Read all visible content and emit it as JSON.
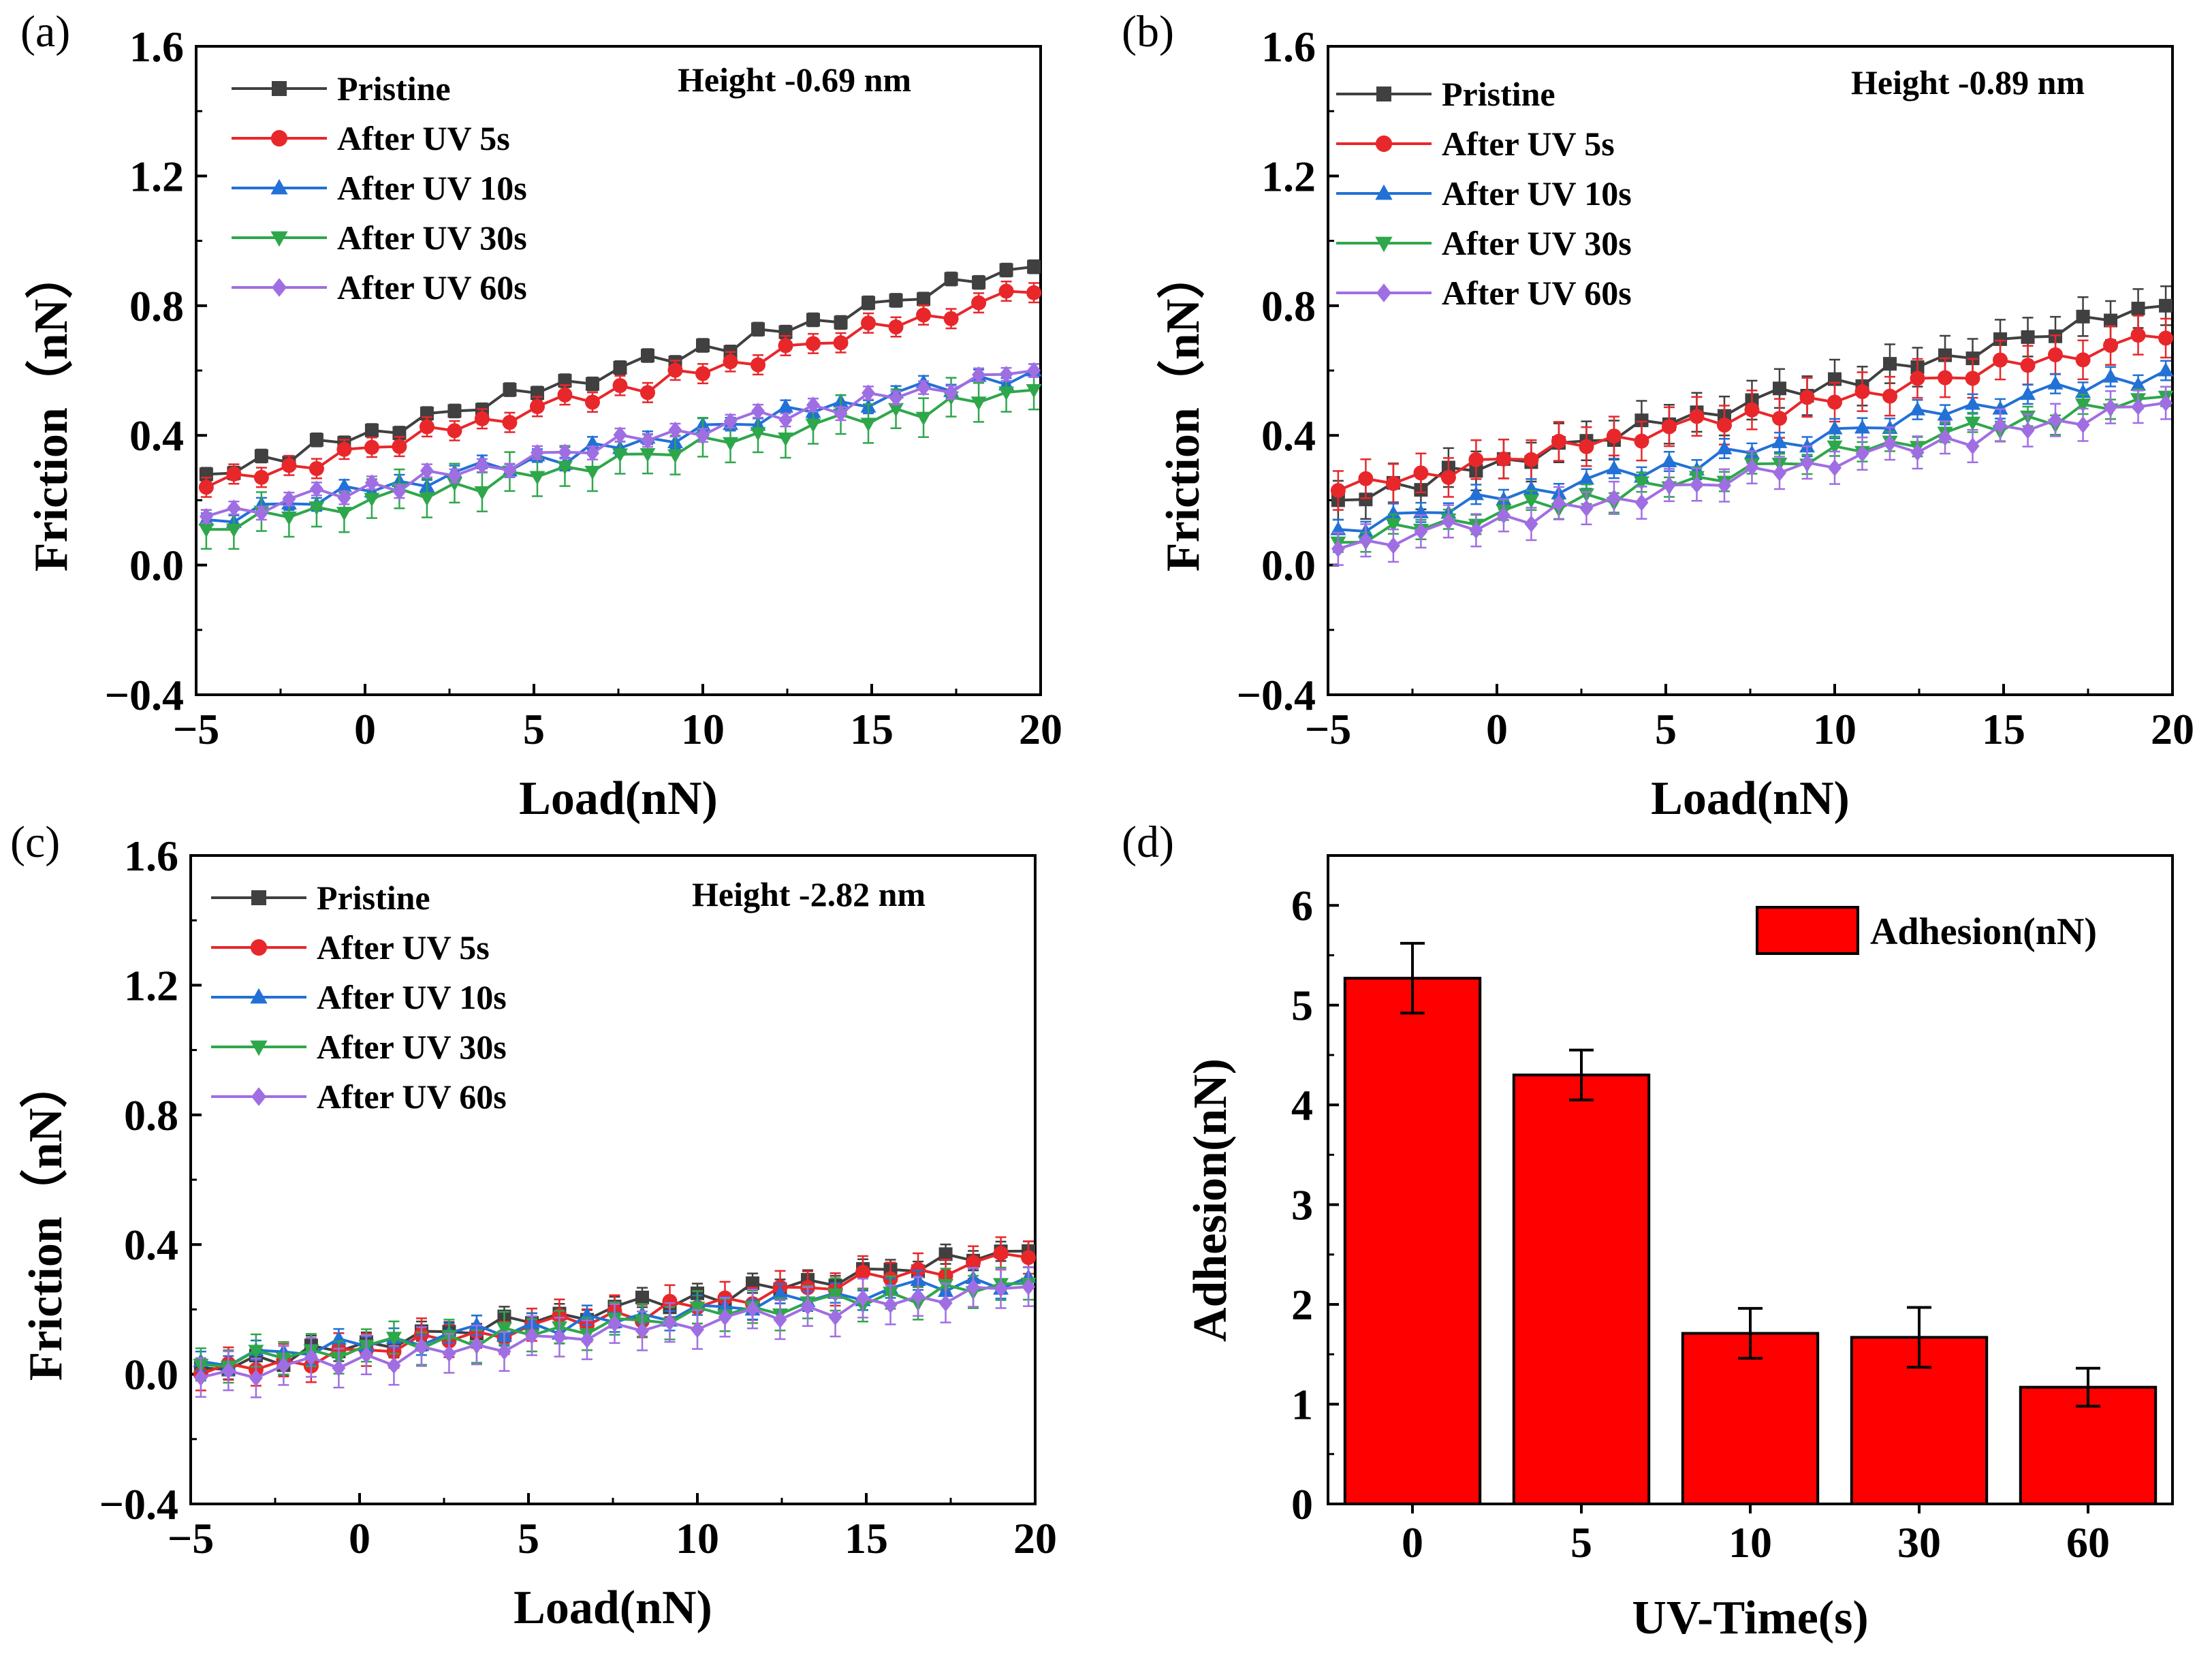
{
  "chart_data": [
    {
      "panel": "(a)",
      "type": "line",
      "annotation": "Height -0.69 nm",
      "xlabel": "Load(nN)",
      "ylabel": "Friction（nN）",
      "xlim": [
        -5,
        20
      ],
      "ylim": [
        -0.4,
        1.6
      ],
      "xticks": [
        "−5",
        "0",
        "5",
        "10",
        "15",
        "20"
      ],
      "yticks": [
        "−0.4",
        "0.0",
        "0.4",
        "0.8",
        "1.2",
        "1.6"
      ],
      "legend": [
        "Pristine",
        "After UV 5s",
        "After UV 10s",
        "After UV 30s",
        "After UV 60s"
      ],
      "series": [
        {
          "name": "Pristine",
          "color": "#404040",
          "marker": "square",
          "start": 0.28,
          "end": 0.92,
          "err": 0.02
        },
        {
          "name": "After UV 5s",
          "color": "#e8272b",
          "marker": "circle",
          "start": 0.24,
          "end": 0.84,
          "err": 0.03
        },
        {
          "name": "After UV 10s",
          "color": "#2271d6",
          "marker": "triangle-up",
          "start": 0.14,
          "end": 0.6,
          "err": 0.02
        },
        {
          "name": "After UV 30s",
          "color": "#2ea74b",
          "marker": "triangle-down",
          "start": 0.11,
          "end": 0.54,
          "err": 0.06
        },
        {
          "name": "After UV 60s",
          "color": "#a06ee3",
          "marker": "diamond",
          "start": 0.15,
          "end": 0.6,
          "err": 0.02
        }
      ]
    },
    {
      "panel": "(b)",
      "type": "line",
      "annotation": "Height -0.89 nm",
      "xlabel": "Load(nN)",
      "ylabel": "Friction（nN）",
      "xlim": [
        -5,
        20
      ],
      "ylim": [
        -0.4,
        1.6
      ],
      "xticks": [
        "−5",
        "0",
        "5",
        "10",
        "15",
        "20"
      ],
      "yticks": [
        "−0.4",
        "0.0",
        "0.4",
        "0.8",
        "1.2",
        "1.6"
      ],
      "legend": [
        "Pristine",
        "After UV 5s",
        "After UV 10s",
        "After UV 30s",
        "After UV 60s"
      ],
      "series": [
        {
          "name": "Pristine",
          "color": "#404040",
          "marker": "square",
          "start": 0.2,
          "end": 0.8,
          "err": 0.06
        },
        {
          "name": "After UV 5s",
          "color": "#e8272b",
          "marker": "circle",
          "start": 0.23,
          "end": 0.7,
          "err": 0.06
        },
        {
          "name": "After UV 10s",
          "color": "#2271d6",
          "marker": "triangle-up",
          "start": 0.11,
          "end": 0.6,
          "err": 0.03
        },
        {
          "name": "After UV 30s",
          "color": "#2ea74b",
          "marker": "triangle-down",
          "start": 0.07,
          "end": 0.52,
          "err": 0.03
        },
        {
          "name": "After UV 60s",
          "color": "#a06ee3",
          "marker": "diamond",
          "start": 0.05,
          "end": 0.5,
          "err": 0.05
        }
      ]
    },
    {
      "panel": "(c)",
      "type": "line",
      "annotation": "Height -2.82 nm",
      "xlabel": "Load(nN)",
      "ylabel": "Friction（nN）",
      "xlim": [
        -5,
        20
      ],
      "ylim": [
        -0.4,
        1.6
      ],
      "xticks": [
        "−5",
        "0",
        "5",
        "10",
        "15",
        "20"
      ],
      "yticks": [
        "−0.4",
        "0.0",
        "0.4",
        "0.8",
        "1.2",
        "1.6"
      ],
      "legend": [
        "Pristine",
        "After UV 5s",
        "After UV 10s",
        "After UV 30s",
        "After UV 60s"
      ],
      "series": [
        {
          "name": "Pristine",
          "color": "#404040",
          "marker": "square",
          "start": 0.02,
          "end": 0.38,
          "err": 0.03
        },
        {
          "name": "After UV 5s",
          "color": "#e8272b",
          "marker": "circle",
          "start": 0.0,
          "end": 0.36,
          "err": 0.05
        },
        {
          "name": "After UV 10s",
          "color": "#2271d6",
          "marker": "triangle-up",
          "start": 0.04,
          "end": 0.3,
          "err": 0.03
        },
        {
          "name": "After UV 30s",
          "color": "#2ea74b",
          "marker": "triangle-down",
          "start": 0.03,
          "end": 0.28,
          "err": 0.05
        },
        {
          "name": "After UV 60s",
          "color": "#a06ee3",
          "marker": "diamond",
          "start": -0.01,
          "end": 0.27,
          "err": 0.06
        }
      ]
    },
    {
      "panel": "(d)",
      "type": "bar",
      "xlabel": "UV-Time(s)",
      "ylabel": "Adhesion(nN)",
      "ylim": [
        0,
        6.5
      ],
      "yticks": [
        "0",
        "1",
        "2",
        "3",
        "4",
        "5",
        "6"
      ],
      "categories": [
        "0",
        "5",
        "10",
        "30",
        "60"
      ],
      "values": [
        5.27,
        4.3,
        1.71,
        1.67,
        1.17
      ],
      "errors": [
        0.35,
        0.25,
        0.25,
        0.3,
        0.19
      ],
      "legend": [
        "Adhesion(nN)"
      ],
      "bar_color": "#ff0000"
    }
  ]
}
